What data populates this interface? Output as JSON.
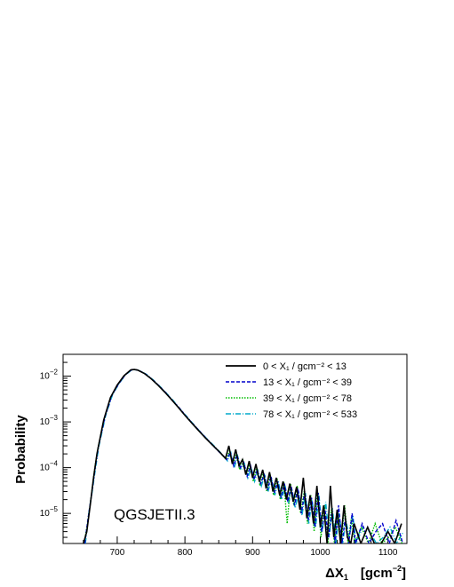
{
  "chart_data": {
    "type": "line",
    "title": "",
    "xlabel": "ΔX",
    "xlabel_sub": "1",
    "xlabel_unit": "[gcm",
    "xlabel_unit_sup": "−2",
    "xlabel_unit_close": "]",
    "ylabel": "Probability",
    "annotation": "QGSJETII.3",
    "xlim": [
      620,
      1128
    ],
    "ylim": [
      2.2e-06,
      0.03
    ],
    "yscale": "log",
    "x_ticks": [
      {
        "value": 700,
        "label": "700"
      },
      {
        "value": 800,
        "label": "800"
      },
      {
        "value": 900,
        "label": "900"
      },
      {
        "value": 1000,
        "label": "1000"
      },
      {
        "value": 1100,
        "label": "1100"
      }
    ],
    "y_ticks": [
      {
        "value": 1e-05,
        "base": "10",
        "exp": "−5"
      },
      {
        "value": 0.0001,
        "base": "10",
        "exp": "−4"
      },
      {
        "value": 0.001,
        "base": "10",
        "exp": "−3"
      },
      {
        "value": 0.01,
        "base": "10",
        "exp": "−2"
      }
    ],
    "legend_position": "top-right",
    "series": [
      {
        "name": "0 < X₁ / gcm⁻² < 13",
        "color": "#000000",
        "dash": "",
        "x": [
          650,
          655,
          660,
          665,
          670,
          680,
          690,
          700,
          710,
          720,
          725,
          730,
          740,
          750,
          760,
          770,
          780,
          790,
          800,
          810,
          820,
          830,
          840,
          850,
          860,
          865,
          870,
          875,
          880,
          885,
          890,
          895,
          900,
          905,
          910,
          915,
          920,
          925,
          930,
          935,
          940,
          945,
          950,
          955,
          960,
          965,
          970,
          975,
          980,
          985,
          990,
          995,
          1000,
          1005,
          1010,
          1015,
          1020,
          1025,
          1030,
          1035,
          1040,
          1045,
          1050,
          1060,
          1070,
          1080,
          1090,
          1100,
          1110,
          1120
        ],
        "y": [
          2.2e-06,
          4e-06,
          1.5e-05,
          6e-05,
          0.0002,
          0.0011,
          0.0034,
          0.0064,
          0.0102,
          0.0137,
          0.014,
          0.0136,
          0.0115,
          0.0088,
          0.0064,
          0.0045,
          0.0031,
          0.0021,
          0.0014,
          0.00095,
          0.00065,
          0.00045,
          0.00032,
          0.00023,
          0.00016,
          0.0003,
          0.00012,
          0.00025,
          0.00011,
          0.00015,
          7e-05,
          0.00014,
          6e-05,
          0.00012,
          5e-05,
          9e-05,
          3.5e-05,
          8e-05,
          3e-05,
          6e-05,
          2.5e-05,
          5e-05,
          2e-05,
          4.5e-05,
          1.8e-05,
          3.8e-05,
          1.2e-05,
          6e-05,
          8e-06,
          2.5e-05,
          6e-06,
          4e-05,
          5e-06,
          1.5e-05,
          2.2e-06,
          4e-05,
          3e-06,
          1.2e-05,
          2.2e-06,
          1.5e-05,
          3e-06,
          2.2e-06,
          6e-06,
          2.2e-06,
          5e-06,
          2.2e-06,
          2.2e-06,
          4e-06,
          2.2e-06,
          6e-06
        ]
      },
      {
        "name": "13 < X₁ / gcm⁻² < 39",
        "color": "#0000cc",
        "dash": "4,2",
        "x": [
          652,
          657,
          662,
          667,
          672,
          682,
          692,
          702,
          712,
          722,
          727,
          732,
          742,
          752,
          762,
          772,
          782,
          792,
          802,
          812,
          822,
          832,
          842,
          852,
          862,
          867,
          872,
          877,
          882,
          887,
          892,
          897,
          902,
          907,
          912,
          917,
          922,
          927,
          932,
          937,
          942,
          947,
          952,
          957,
          962,
          967,
          972,
          977,
          982,
          987,
          992,
          997,
          1002,
          1007,
          1012,
          1017,
          1022,
          1027,
          1032,
          1037,
          1042,
          1047,
          1052,
          1062,
          1072,
          1082,
          1092,
          1102,
          1112,
          1122
        ],
        "y": [
          2.2e-06,
          8e-06,
          2.5e-05,
          9e-05,
          0.00028,
          0.0013,
          0.0038,
          0.0068,
          0.0108,
          0.014,
          0.0139,
          0.0133,
          0.0111,
          0.0084,
          0.0061,
          0.0043,
          0.0029,
          0.002,
          0.00132,
          0.0009,
          0.00062,
          0.00043,
          0.0003,
          0.00021,
          0.00015,
          0.00022,
          0.00011,
          0.00019,
          0.0001,
          0.00013,
          6.5e-05,
          0.00011,
          5.5e-05,
          9e-05,
          4.5e-05,
          7e-05,
          3.2e-05,
          6.5e-05,
          2.8e-05,
          5e-05,
          2.2e-05,
          4.5e-05,
          1.8e-05,
          4e-05,
          1.5e-05,
          3.5e-05,
          1e-05,
          3e-05,
          7e-06,
          2.2e-05,
          5e-06,
          2.8e-05,
          4e-06,
          1.2e-05,
          3e-06,
          1e-05,
          2.2e-06,
          1.5e-05,
          2.2e-06,
          8e-06,
          2.2e-06,
          1e-05,
          2.2e-06,
          6e-06,
          2.2e-06,
          4e-06,
          6e-06,
          2.2e-06,
          7e-06,
          2.2e-06
        ]
      },
      {
        "name": "39 < X₁ / gcm⁻² < 78",
        "color": "#00bb00",
        "dash": "1.5,1.5",
        "x": [
          651,
          656,
          661,
          666,
          671,
          681,
          691,
          701,
          711,
          721,
          726,
          731,
          741,
          751,
          761,
          771,
          781,
          791,
          801,
          811,
          821,
          831,
          841,
          851,
          861,
          866,
          871,
          876,
          881,
          886,
          891,
          896,
          901,
          906,
          911,
          916,
          921,
          926,
          931,
          936,
          941,
          946,
          951,
          956,
          961,
          966,
          971,
          976,
          981,
          986,
          991,
          996,
          1001,
          1006,
          1011,
          1016,
          1021,
          1026,
          1031,
          1036,
          1041,
          1046,
          1051,
          1061,
          1071,
          1081,
          1091,
          1101,
          1111,
          1121
        ],
        "y": [
          2.2e-06,
          6e-06,
          2e-05,
          8e-05,
          0.00025,
          0.0012,
          0.0036,
          0.0066,
          0.0105,
          0.0138,
          0.014,
          0.0135,
          0.0113,
          0.0086,
          0.0062,
          0.0044,
          0.003,
          0.002,
          0.00135,
          0.00092,
          0.00063,
          0.00044,
          0.00031,
          0.00022,
          0.00015,
          0.00024,
          0.00012,
          0.0002,
          9e-05,
          0.00014,
          7e-05,
          0.00012,
          5e-05,
          0.0001,
          4e-05,
          8e-05,
          3e-05,
          7e-05,
          2.5e-05,
          6e-05,
          2e-05,
          5e-05,
          6e-06,
          4.5e-05,
          1.5e-05,
          4e-05,
          1e-05,
          3e-05,
          6e-06,
          2.5e-05,
          4e-06,
          3e-05,
          3e-06,
          1.5e-05,
          2.2e-06,
          1.2e-05,
          2.2e-06,
          1e-05,
          2.2e-06,
          1.5e-05,
          2.2e-06,
          8e-06,
          2.2e-06,
          5e-06,
          2.2e-06,
          6e-06,
          2.2e-06,
          3e-06,
          5e-06,
          2.2e-06
        ]
      },
      {
        "name": "78 < X₁ / gcm⁻² < 533",
        "color": "#00aacc",
        "dash": "6,2,1,2",
        "x": [
          653,
          658,
          663,
          668,
          673,
          683,
          693,
          703,
          713,
          723,
          728,
          733,
          743,
          753,
          763,
          773,
          783,
          793,
          803,
          813,
          823,
          833,
          843,
          853,
          863,
          868,
          873,
          878,
          883,
          888,
          893,
          898,
          903,
          908,
          913,
          918,
          923,
          928,
          933,
          938,
          943,
          948,
          953,
          958,
          963,
          968,
          973,
          978,
          983,
          988,
          993,
          998,
          1003,
          1008,
          1013,
          1018,
          1023,
          1028,
          1033,
          1038,
          1043,
          1048,
          1053,
          1063,
          1073,
          1083,
          1093,
          1103,
          1113,
          1123
        ],
        "y": [
          2.2e-06,
          1e-05,
          3e-05,
          0.0001,
          0.0003,
          0.0014,
          0.0039,
          0.007,
          0.011,
          0.0139,
          0.0138,
          0.0132,
          0.011,
          0.0083,
          0.006,
          0.0042,
          0.0029,
          0.0019,
          0.0013,
          0.00088,
          0.0006,
          0.00042,
          0.0003,
          0.00021,
          0.00014,
          0.00021,
          0.0001,
          0.00018,
          9e-05,
          0.00012,
          6e-05,
          0.0001,
          5e-05,
          8.5e-05,
          4e-05,
          7e-05,
          3e-05,
          6e-05,
          2.5e-05,
          5e-05,
          2e-05,
          4e-05,
          1.6e-05,
          3.5e-05,
          1.3e-05,
          3e-05,
          9e-06,
          2.8e-05,
          6e-06,
          2e-05,
          5e-06,
          2.5e-05,
          4e-06,
          1.8e-05,
          3e-06,
          1.3e-05,
          2.2e-06,
          1e-05,
          2.2e-06,
          7e-06,
          3e-06,
          9e-06,
          2.2e-06,
          5e-06,
          4e-06,
          2.2e-06,
          3e-06,
          5e-06,
          2.2e-06,
          4e-06
        ]
      }
    ]
  }
}
